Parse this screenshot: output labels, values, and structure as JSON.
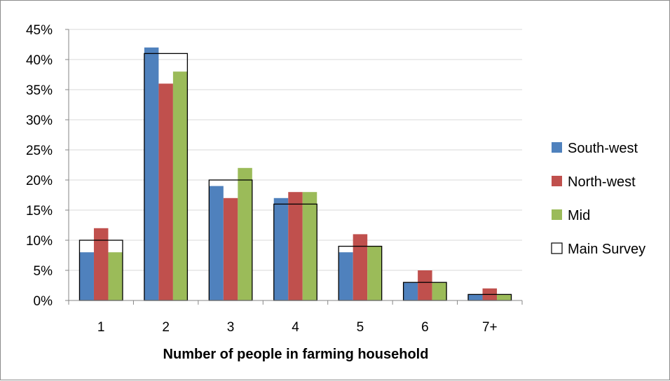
{
  "chart_data": {
    "type": "bar",
    "title": "",
    "xlabel": "Number of people in farming household",
    "ylabel": "",
    "categories": [
      "1",
      "2",
      "3",
      "4",
      "5",
      "6",
      "7+"
    ],
    "ylim": [
      0,
      45
    ],
    "yticks": [
      "0%",
      "5%",
      "10%",
      "15%",
      "20%",
      "25%",
      "30%",
      "35%",
      "40%",
      "45%"
    ],
    "ytick_values": [
      0,
      5,
      10,
      15,
      20,
      25,
      30,
      35,
      40,
      45
    ],
    "grid": true,
    "legend_position": "right",
    "series": [
      {
        "name": "South-west",
        "color": "#4f81bd",
        "values": [
          8,
          42,
          19,
          17,
          8,
          3,
          1
        ]
      },
      {
        "name": "North-west",
        "color": "#c0504d",
        "values": [
          12,
          36,
          17,
          18,
          11,
          5,
          2
        ]
      },
      {
        "name": "Mid",
        "color": "#9bbb59",
        "values": [
          8,
          38,
          22,
          18,
          9,
          3,
          1
        ]
      }
    ],
    "overlay_series": {
      "name": "Main Survey",
      "style": "outline",
      "color": "#000000",
      "values": [
        10,
        41,
        20,
        16,
        9,
        3,
        1
      ]
    }
  }
}
